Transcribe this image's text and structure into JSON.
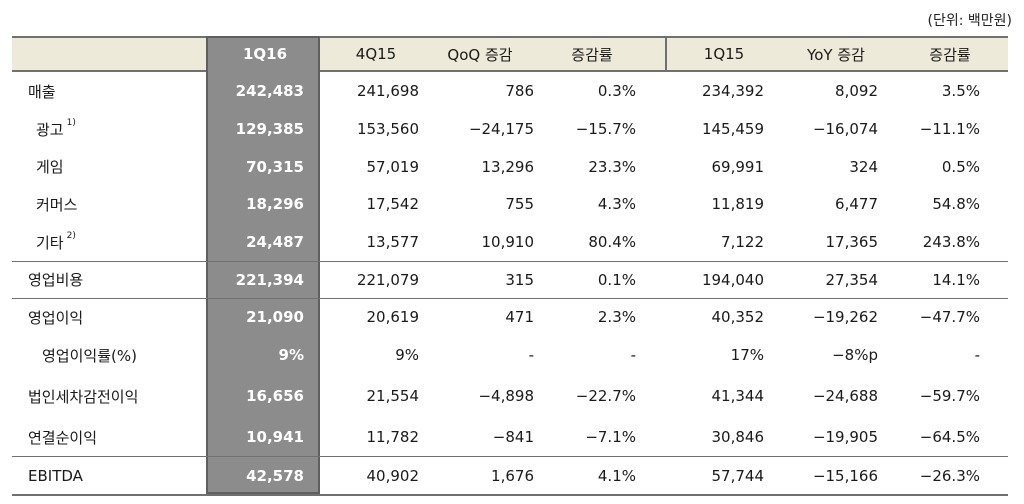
{
  "unit_note": "(단위: 백만원)",
  "columns": [
    "",
    "1Q16",
    "4Q15",
    "QoQ 증감",
    "증감률",
    "1Q15",
    "YoY 증감",
    "증감률"
  ],
  "rows": [
    {
      "label": "매출",
      "sup": "",
      "values": [
        "242,483",
        "241,698",
        "786",
        "0.3%",
        "234,392",
        "8,092",
        "3.5%"
      ]
    },
    {
      "label": "광고",
      "sup": "1)",
      "values": [
        "129,385",
        "153,560",
        "−24,175",
        "−15.7%",
        "145,459",
        "−16,074",
        "−11.1%"
      ]
    },
    {
      "label": "게임",
      "sup": "",
      "values": [
        "70,315",
        "57,019",
        "13,296",
        "23.3%",
        "69,991",
        "324",
        "0.5%"
      ]
    },
    {
      "label": "커머스",
      "sup": "",
      "values": [
        "18,296",
        "17,542",
        "755",
        "4.3%",
        "11,819",
        "6,477",
        "54.8%"
      ]
    },
    {
      "label": "기타",
      "sup": "2)",
      "values": [
        "24,487",
        "13,577",
        "10,910",
        "80.4%",
        "7,122",
        "17,365",
        "243.8%"
      ]
    },
    {
      "label": "영업비용",
      "sup": "",
      "values": [
        "221,394",
        "221,079",
        "315",
        "0.1%",
        "194,040",
        "27,354",
        "14.1%"
      ]
    },
    {
      "label": "영업이익",
      "sup": "",
      "values": [
        "21,090",
        "20,619",
        "471",
        "2.3%",
        "40,352",
        "−19,262",
        "−47.7%"
      ]
    },
    {
      "label": "영업이익률(%)",
      "sup": "",
      "values": [
        "9%",
        "9%",
        "-",
        "-",
        "17%",
        "−8%p",
        "-"
      ]
    },
    {
      "label": "법인세차감전이익",
      "sup": "",
      "values": [
        "16,656",
        "21,554",
        "−4,898",
        "−22.7%",
        "41,344",
        "−24,688",
        "−59.7%"
      ]
    },
    {
      "label": "연결순이익",
      "sup": "",
      "values": [
        "10,941",
        "11,782",
        "−841",
        "−7.1%",
        "30,846",
        "−19,905",
        "−64.5%"
      ]
    },
    {
      "label": "EBITDA",
      "sup": "",
      "values": [
        "42,578",
        "40,902",
        "1,676",
        "4.1%",
        "57,744",
        "−15,166",
        "−26.3%"
      ]
    }
  ]
}
